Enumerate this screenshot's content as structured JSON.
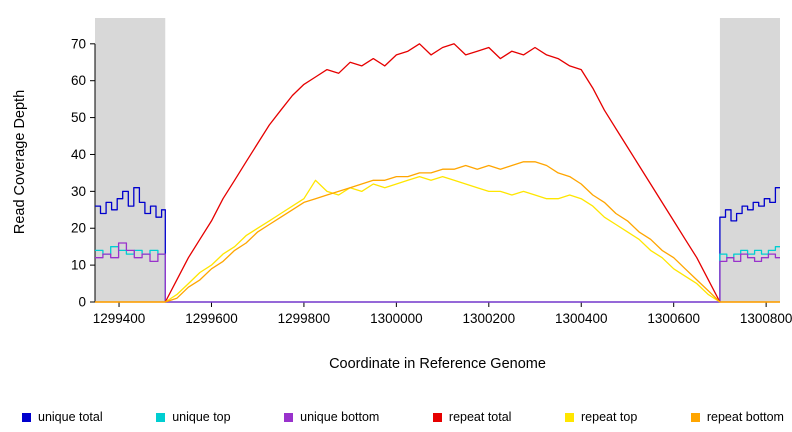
{
  "chart_data": {
    "type": "line",
    "title": "",
    "xlabel": "Coordinate in Reference Genome",
    "ylabel": "Read Coverage Depth",
    "xlim": [
      1299348,
      1300830
    ],
    "ylim": [
      0,
      77
    ],
    "x_ticks": [
      1299400,
      1299600,
      1299800,
      1300000,
      1300200,
      1300400,
      1300600,
      1300800
    ],
    "y_ticks": [
      0,
      10,
      20,
      30,
      40,
      50,
      60,
      70
    ],
    "grid": false,
    "legend_position": "bottom",
    "shaded_regions": [
      {
        "from": 1299348,
        "to": 1299500,
        "color": "#d8d8d8"
      },
      {
        "from": 1300700,
        "to": 1300830,
        "color": "#d8d8d8"
      }
    ],
    "series": [
      {
        "name": "unique total",
        "color": "#0000cd",
        "interpolation": "step",
        "points": [
          [
            1299348,
            26
          ],
          [
            1299360,
            24
          ],
          [
            1299372,
            27
          ],
          [
            1299384,
            25
          ],
          [
            1299396,
            28
          ],
          [
            1299408,
            30
          ],
          [
            1299420,
            26
          ],
          [
            1299432,
            31
          ],
          [
            1299444,
            27
          ],
          [
            1299456,
            24
          ],
          [
            1299468,
            26
          ],
          [
            1299480,
            23
          ],
          [
            1299492,
            25
          ],
          [
            1299500,
            0
          ],
          [
            1300700,
            23
          ],
          [
            1300712,
            25
          ],
          [
            1300724,
            22
          ],
          [
            1300736,
            24
          ],
          [
            1300748,
            26
          ],
          [
            1300760,
            25
          ],
          [
            1300772,
            27
          ],
          [
            1300784,
            26
          ],
          [
            1300796,
            28
          ],
          [
            1300808,
            27
          ],
          [
            1300820,
            31
          ],
          [
            1300830,
            31
          ]
        ]
      },
      {
        "name": "unique top",
        "color": "#00ced1",
        "interpolation": "step",
        "points": [
          [
            1299348,
            14
          ],
          [
            1299365,
            13
          ],
          [
            1299382,
            15
          ],
          [
            1299399,
            14
          ],
          [
            1299416,
            13
          ],
          [
            1299433,
            14
          ],
          [
            1299450,
            13
          ],
          [
            1299467,
            14
          ],
          [
            1299484,
            13
          ],
          [
            1299500,
            0
          ],
          [
            1300700,
            13
          ],
          [
            1300715,
            12
          ],
          [
            1300730,
            13
          ],
          [
            1300745,
            14
          ],
          [
            1300760,
            13
          ],
          [
            1300775,
            14
          ],
          [
            1300790,
            13
          ],
          [
            1300805,
            14
          ],
          [
            1300820,
            15
          ],
          [
            1300830,
            15
          ]
        ]
      },
      {
        "name": "unique bottom",
        "color": "#9932cc",
        "interpolation": "step",
        "points": [
          [
            1299348,
            12
          ],
          [
            1299365,
            13
          ],
          [
            1299382,
            12
          ],
          [
            1299399,
            16
          ],
          [
            1299416,
            14
          ],
          [
            1299433,
            12
          ],
          [
            1299450,
            13
          ],
          [
            1299467,
            11
          ],
          [
            1299484,
            13
          ],
          [
            1299500,
            0
          ],
          [
            1300700,
            11
          ],
          [
            1300715,
            12
          ],
          [
            1300730,
            11
          ],
          [
            1300745,
            13
          ],
          [
            1300760,
            12
          ],
          [
            1300775,
            11
          ],
          [
            1300790,
            12
          ],
          [
            1300805,
            13
          ],
          [
            1300820,
            12
          ],
          [
            1300830,
            12
          ]
        ]
      },
      {
        "name": "repeat total",
        "color": "#e60000",
        "interpolation": "linear",
        "points": [
          [
            1299348,
            0
          ],
          [
            1299500,
            0
          ],
          [
            1299525,
            6
          ],
          [
            1299550,
            12
          ],
          [
            1299575,
            17
          ],
          [
            1299600,
            22
          ],
          [
            1299625,
            28
          ],
          [
            1299650,
            33
          ],
          [
            1299675,
            38
          ],
          [
            1299700,
            43
          ],
          [
            1299725,
            48
          ],
          [
            1299750,
            52
          ],
          [
            1299775,
            56
          ],
          [
            1299800,
            59
          ],
          [
            1299825,
            61
          ],
          [
            1299850,
            63
          ],
          [
            1299875,
            62
          ],
          [
            1299900,
            65
          ],
          [
            1299925,
            64
          ],
          [
            1299950,
            66
          ],
          [
            1299975,
            64
          ],
          [
            1300000,
            67
          ],
          [
            1300025,
            68
          ],
          [
            1300050,
            70
          ],
          [
            1300075,
            67
          ],
          [
            1300100,
            69
          ],
          [
            1300125,
            70
          ],
          [
            1300150,
            67
          ],
          [
            1300175,
            68
          ],
          [
            1300200,
            69
          ],
          [
            1300225,
            66
          ],
          [
            1300250,
            68
          ],
          [
            1300275,
            67
          ],
          [
            1300300,
            69
          ],
          [
            1300325,
            67
          ],
          [
            1300350,
            66
          ],
          [
            1300375,
            64
          ],
          [
            1300400,
            63
          ],
          [
            1300425,
            58
          ],
          [
            1300450,
            52
          ],
          [
            1300475,
            47
          ],
          [
            1300500,
            42
          ],
          [
            1300525,
            37
          ],
          [
            1300550,
            32
          ],
          [
            1300575,
            27
          ],
          [
            1300600,
            22
          ],
          [
            1300625,
            17
          ],
          [
            1300650,
            12
          ],
          [
            1300675,
            6
          ],
          [
            1300700,
            0
          ],
          [
            1300830,
            0
          ]
        ]
      },
      {
        "name": "repeat top",
        "color": "#ffe600",
        "interpolation": "linear",
        "points": [
          [
            1299348,
            0
          ],
          [
            1299500,
            0
          ],
          [
            1299525,
            2
          ],
          [
            1299550,
            5
          ],
          [
            1299575,
            8
          ],
          [
            1299600,
            10
          ],
          [
            1299625,
            13
          ],
          [
            1299650,
            15
          ],
          [
            1299675,
            18
          ],
          [
            1299700,
            20
          ],
          [
            1299725,
            22
          ],
          [
            1299750,
            24
          ],
          [
            1299775,
            26
          ],
          [
            1299800,
            28
          ],
          [
            1299825,
            33
          ],
          [
            1299850,
            30
          ],
          [
            1299875,
            29
          ],
          [
            1299900,
            31
          ],
          [
            1299925,
            30
          ],
          [
            1299950,
            32
          ],
          [
            1299975,
            31
          ],
          [
            1300000,
            32
          ],
          [
            1300025,
            33
          ],
          [
            1300050,
            34
          ],
          [
            1300075,
            33
          ],
          [
            1300100,
            34
          ],
          [
            1300125,
            33
          ],
          [
            1300150,
            32
          ],
          [
            1300175,
            31
          ],
          [
            1300200,
            30
          ],
          [
            1300225,
            30
          ],
          [
            1300250,
            29
          ],
          [
            1300275,
            30
          ],
          [
            1300300,
            29
          ],
          [
            1300325,
            28
          ],
          [
            1300350,
            28
          ],
          [
            1300375,
            29
          ],
          [
            1300400,
            28
          ],
          [
            1300425,
            26
          ],
          [
            1300450,
            23
          ],
          [
            1300475,
            21
          ],
          [
            1300500,
            19
          ],
          [
            1300525,
            17
          ],
          [
            1300550,
            14
          ],
          [
            1300575,
            12
          ],
          [
            1300600,
            9
          ],
          [
            1300625,
            7
          ],
          [
            1300650,
            5
          ],
          [
            1300675,
            2
          ],
          [
            1300700,
            0
          ],
          [
            1300830,
            0
          ]
        ]
      },
      {
        "name": "repeat bottom",
        "color": "#ffa500",
        "interpolation": "linear",
        "points": [
          [
            1299348,
            0
          ],
          [
            1299500,
            0
          ],
          [
            1299525,
            1
          ],
          [
            1299550,
            4
          ],
          [
            1299575,
            6
          ],
          [
            1299600,
            9
          ],
          [
            1299625,
            11
          ],
          [
            1299650,
            14
          ],
          [
            1299675,
            16
          ],
          [
            1299700,
            19
          ],
          [
            1299725,
            21
          ],
          [
            1299750,
            23
          ],
          [
            1299775,
            25
          ],
          [
            1299800,
            27
          ],
          [
            1299825,
            28
          ],
          [
            1299850,
            29
          ],
          [
            1299875,
            30
          ],
          [
            1299900,
            31
          ],
          [
            1299925,
            32
          ],
          [
            1299950,
            33
          ],
          [
            1299975,
            33
          ],
          [
            1300000,
            34
          ],
          [
            1300025,
            34
          ],
          [
            1300050,
            35
          ],
          [
            1300075,
            35
          ],
          [
            1300100,
            36
          ],
          [
            1300125,
            36
          ],
          [
            1300150,
            37
          ],
          [
            1300175,
            36
          ],
          [
            1300200,
            37
          ],
          [
            1300225,
            36
          ],
          [
            1300250,
            37
          ],
          [
            1300275,
            38
          ],
          [
            1300300,
            38
          ],
          [
            1300325,
            37
          ],
          [
            1300350,
            35
          ],
          [
            1300375,
            34
          ],
          [
            1300400,
            32
          ],
          [
            1300425,
            29
          ],
          [
            1300450,
            27
          ],
          [
            1300475,
            24
          ],
          [
            1300500,
            22
          ],
          [
            1300525,
            19
          ],
          [
            1300550,
            17
          ],
          [
            1300575,
            14
          ],
          [
            1300600,
            12
          ],
          [
            1300625,
            9
          ],
          [
            1300650,
            6
          ],
          [
            1300675,
            3
          ],
          [
            1300700,
            0
          ],
          [
            1300830,
            0
          ]
        ]
      }
    ]
  }
}
